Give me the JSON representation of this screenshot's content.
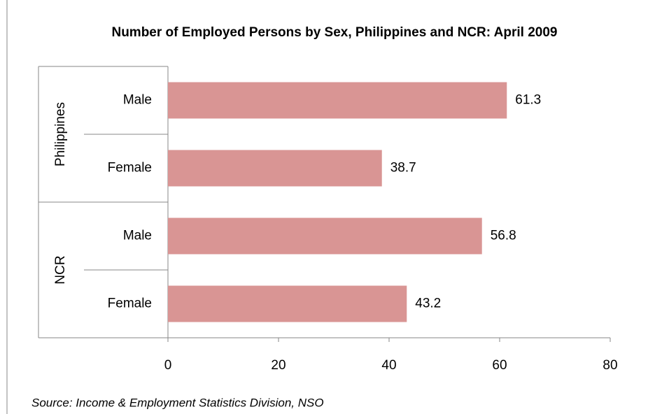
{
  "chart_data": {
    "type": "bar",
    "orientation": "horizontal",
    "title": "Number of Employed Persons by Sex, Philippines and NCR: April 2009",
    "groups": [
      "Philippines",
      "NCR"
    ],
    "categories": [
      "Male",
      "Female",
      "Male",
      "Female"
    ],
    "values": [
      61.3,
      38.7,
      56.8,
      43.2
    ],
    "color": "#d99594",
    "xlim": [
      0,
      80
    ],
    "xticks": [
      0,
      20,
      40,
      60,
      80
    ],
    "source": "Source: Income & Employment Statistics Division, NSO"
  }
}
